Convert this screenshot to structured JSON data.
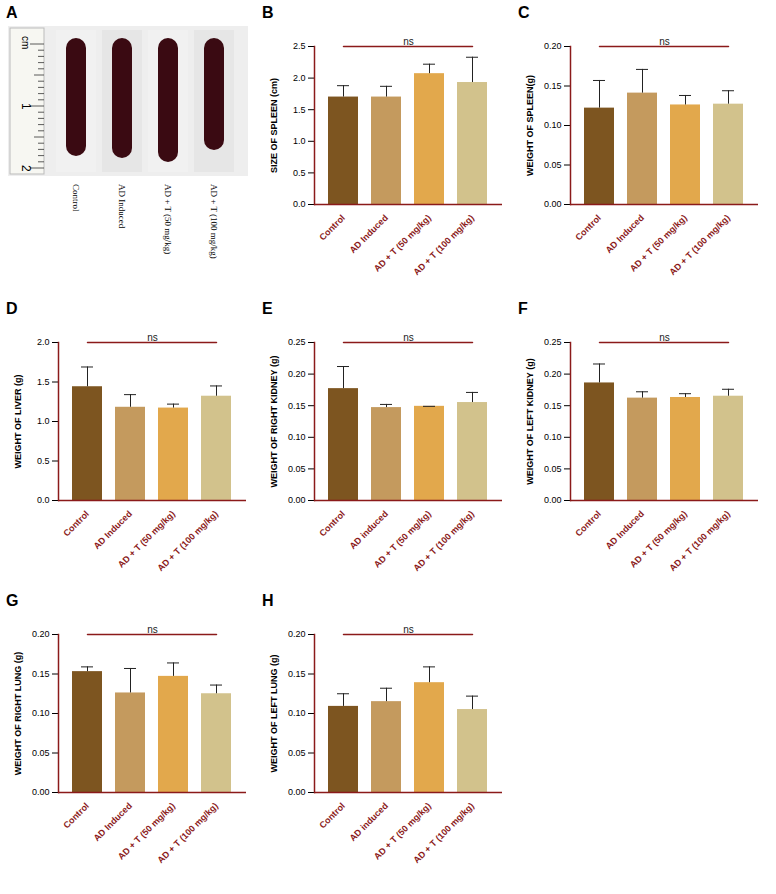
{
  "photo": {
    "panel_label": "A",
    "ruler_unit": "cm",
    "ruler_labels": [
      1,
      2
    ],
    "labels": [
      "Control",
      "AD Induced",
      "AD + T (50 mg/kg)",
      "AD + T (100 mg/kg)"
    ]
  },
  "chart_data": [
    {
      "type": "bar",
      "panel_label": "B",
      "y_label": "SIZE OF SPLEEN (cm)",
      "categories": [
        "Control",
        "AD Induced",
        "AD + T (50 mg/kg)",
        "AD + T (100 mg/kg)"
      ],
      "values": [
        1.7,
        1.7,
        2.07,
        1.93
      ],
      "errors": [
        0.18,
        0.17,
        0.15,
        0.4
      ],
      "colors": [
        "#7d5520",
        "#c49a5e",
        "#e2a84c",
        "#d2c28c"
      ],
      "ylim": [
        0,
        2.5
      ],
      "yticks": [
        {
          "value": 0,
          "label": "0.0"
        },
        0.5,
        {
          "value": 1,
          "label": "1.0"
        },
        1.5,
        {
          "value": 2,
          "label": "2.0"
        },
        2.5
      ],
      "annotation": "ns"
    },
    {
      "type": "bar",
      "panel_label": "C",
      "y_label": "WEIGHT OF SPLEEN(g)",
      "categories": [
        "Control",
        "AD Induced",
        "AD + T (50 mg/kg)",
        "AD + T (100 mg/kg)"
      ],
      "values": [
        0.122,
        0.141,
        0.126,
        0.127
      ],
      "errors": [
        0.035,
        0.03,
        0.012,
        0.017
      ],
      "colors": [
        "#7d5520",
        "#c49a5e",
        "#e2a84c",
        "#d2c28c"
      ],
      "ylim": [
        0,
        0.2
      ],
      "yticks": [
        {
          "value": 0,
          "label": "0.00"
        },
        0.05,
        {
          "value": 0.1,
          "label": "0.10"
        },
        0.15,
        {
          "value": 0.2,
          "label": "0.20"
        }
      ],
      "annotation": "ns"
    },
    {
      "type": "bar",
      "panel_label": "D",
      "y_label": "WEIGHT OF LIVER (g)",
      "categories": [
        "Control",
        "AD Induced",
        "AD + T (50 mg/kg)",
        "AD + T (100 mg/kg)"
      ],
      "values": [
        1.44,
        1.18,
        1.17,
        1.32
      ],
      "errors": [
        0.25,
        0.16,
        0.05,
        0.13
      ],
      "colors": [
        "#7d5520",
        "#c49a5e",
        "#e2a84c",
        "#d2c28c"
      ],
      "ylim": [
        0,
        2
      ],
      "yticks": [
        {
          "value": 0,
          "label": "0.0"
        },
        0.5,
        {
          "value": 1,
          "label": "1.0"
        },
        1.5,
        {
          "value": 2,
          "label": "2.0"
        }
      ],
      "annotation": "ns"
    },
    {
      "type": "bar",
      "panel_label": "E",
      "y_label": "WEIGHT OF RIGHT KIDNEY (g)",
      "categories": [
        "Control",
        "AD induced",
        "AD + T (50 mg/kg)",
        "AD + T (100 mg/kg)"
      ],
      "values": [
        0.177,
        0.147,
        0.149,
        0.155
      ],
      "errors": [
        0.035,
        0.005,
        0.0,
        0.016
      ],
      "colors": [
        "#7d5520",
        "#c49a5e",
        "#e2a84c",
        "#d2c28c"
      ],
      "ylim": [
        0,
        0.25
      ],
      "yticks": [
        {
          "value": 0,
          "label": "0.00"
        },
        0.05,
        {
          "value": 0.1,
          "label": "0.10"
        },
        0.15,
        {
          "value": 0.2,
          "label": "0.20"
        },
        0.25
      ],
      "annotation": "ns"
    },
    {
      "type": "bar",
      "panel_label": "F",
      "y_label": "WEIGHT OF LEFT KIDNEY (g)",
      "categories": [
        "Control",
        "AD Induced",
        "AD + T (50 mg/kg)",
        "AD + T (100 mg/kg)"
      ],
      "values": [
        0.186,
        0.162,
        0.163,
        0.165
      ],
      "errors": [
        0.03,
        0.01,
        0.006,
        0.011
      ],
      "colors": [
        "#7d5520",
        "#c49a5e",
        "#e2a84c",
        "#d2c28c"
      ],
      "ylim": [
        0,
        0.25
      ],
      "yticks": [
        {
          "value": 0,
          "label": "0.00"
        },
        0.05,
        {
          "value": 0.1,
          "label": "0.10"
        },
        0.15,
        {
          "value": 0.2,
          "label": "0.20"
        },
        0.25
      ],
      "annotation": "ns"
    },
    {
      "type": "bar",
      "panel_label": "G",
      "y_label": "WEIGHT OF RIGHT LUNG (g)",
      "categories": [
        "Control",
        "AD Induced",
        "AD + T (50 mg/kg)",
        "AD + T (100 mg/kg)"
      ],
      "values": [
        0.153,
        0.126,
        0.147,
        0.125
      ],
      "errors": [
        0.006,
        0.031,
        0.017,
        0.011
      ],
      "colors": [
        "#7d5520",
        "#c49a5e",
        "#e2a84c",
        "#d2c28c"
      ],
      "ylim": [
        0,
        0.2
      ],
      "yticks": [
        {
          "value": 0,
          "label": "0.00"
        },
        0.05,
        {
          "value": 0.1,
          "label": "0.10"
        },
        0.15,
        {
          "value": 0.2,
          "label": "0.20"
        }
      ],
      "annotation": "ns"
    },
    {
      "type": "bar",
      "panel_label": "H",
      "y_label": "WEIGHT OF LEFT LUNG (g)",
      "categories": [
        "Control",
        "AD induced",
        "AD + T (50 mg/kg)",
        "AD + T (100 mg/kg)"
      ],
      "values": [
        0.109,
        0.115,
        0.139,
        0.105
      ],
      "errors": [
        0.016,
        0.017,
        0.02,
        0.017
      ],
      "colors": [
        "#7d5520",
        "#c49a5e",
        "#e2a84c",
        "#d2c28c"
      ],
      "ylim": [
        0,
        0.2
      ],
      "yticks": [
        {
          "value": 0,
          "label": "0.00"
        },
        0.05,
        {
          "value": 0.1,
          "label": "0.10"
        },
        0.15,
        {
          "value": 0.2,
          "label": "0.20"
        }
      ],
      "annotation": "ns"
    }
  ]
}
